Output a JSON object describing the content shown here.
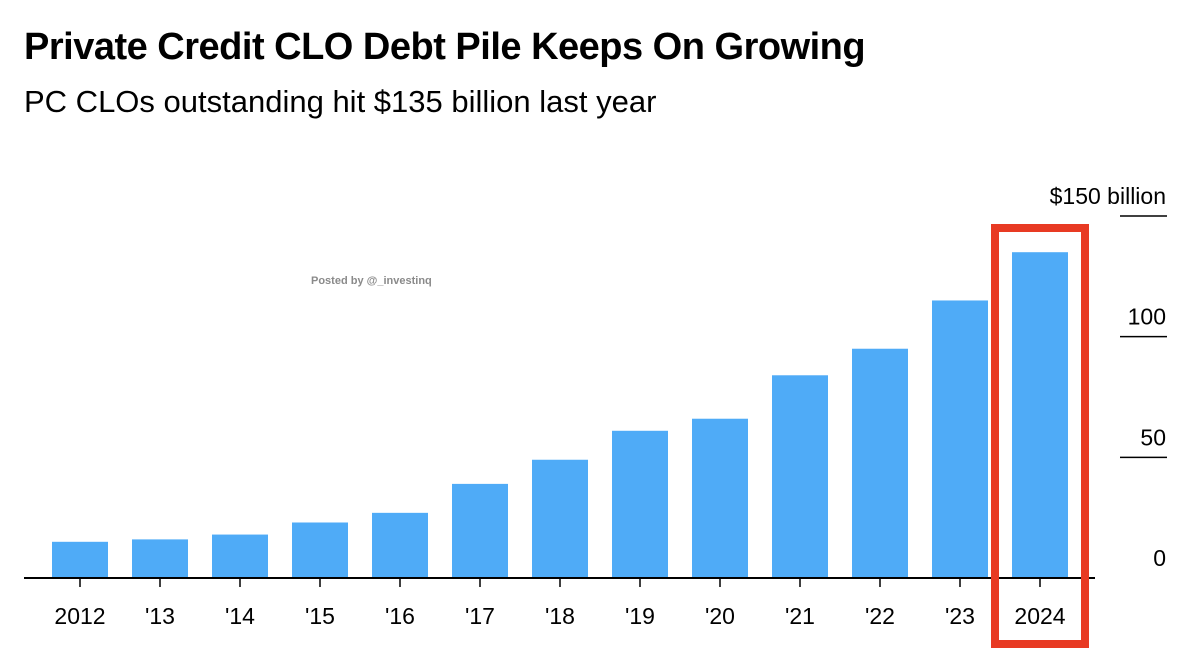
{
  "header": {
    "title": "Private Credit CLO Debt Pile Keeps On Growing",
    "subtitle": "PC CLOs outstanding hit $135 billion last year"
  },
  "watermark": "Posted by @_investinq",
  "colors": {
    "bar": "#4fabf7",
    "highlight": "#e83a23",
    "axis": "#000000"
  },
  "chart_data": {
    "type": "bar",
    "title": "Private Credit CLO Debt Pile Keeps On Growing",
    "subtitle": "PC CLOs outstanding hit $135 billion last year",
    "categories": [
      "2012",
      "'13",
      "'14",
      "'15",
      "'16",
      "'17",
      "'18",
      "'19",
      "'20",
      "'21",
      "'22",
      "'23",
      "2024"
    ],
    "values": [
      15,
      16,
      18,
      23,
      27,
      39,
      49,
      61,
      66,
      84,
      95,
      115,
      135
    ],
    "ylim": [
      0,
      150
    ],
    "yticks": [
      0,
      50,
      100,
      150
    ],
    "ytick_labels": [
      "0",
      "50",
      "100",
      "$150 billion"
    ],
    "y_axis_side": "right",
    "grid": false,
    "highlight_category": "2024"
  }
}
